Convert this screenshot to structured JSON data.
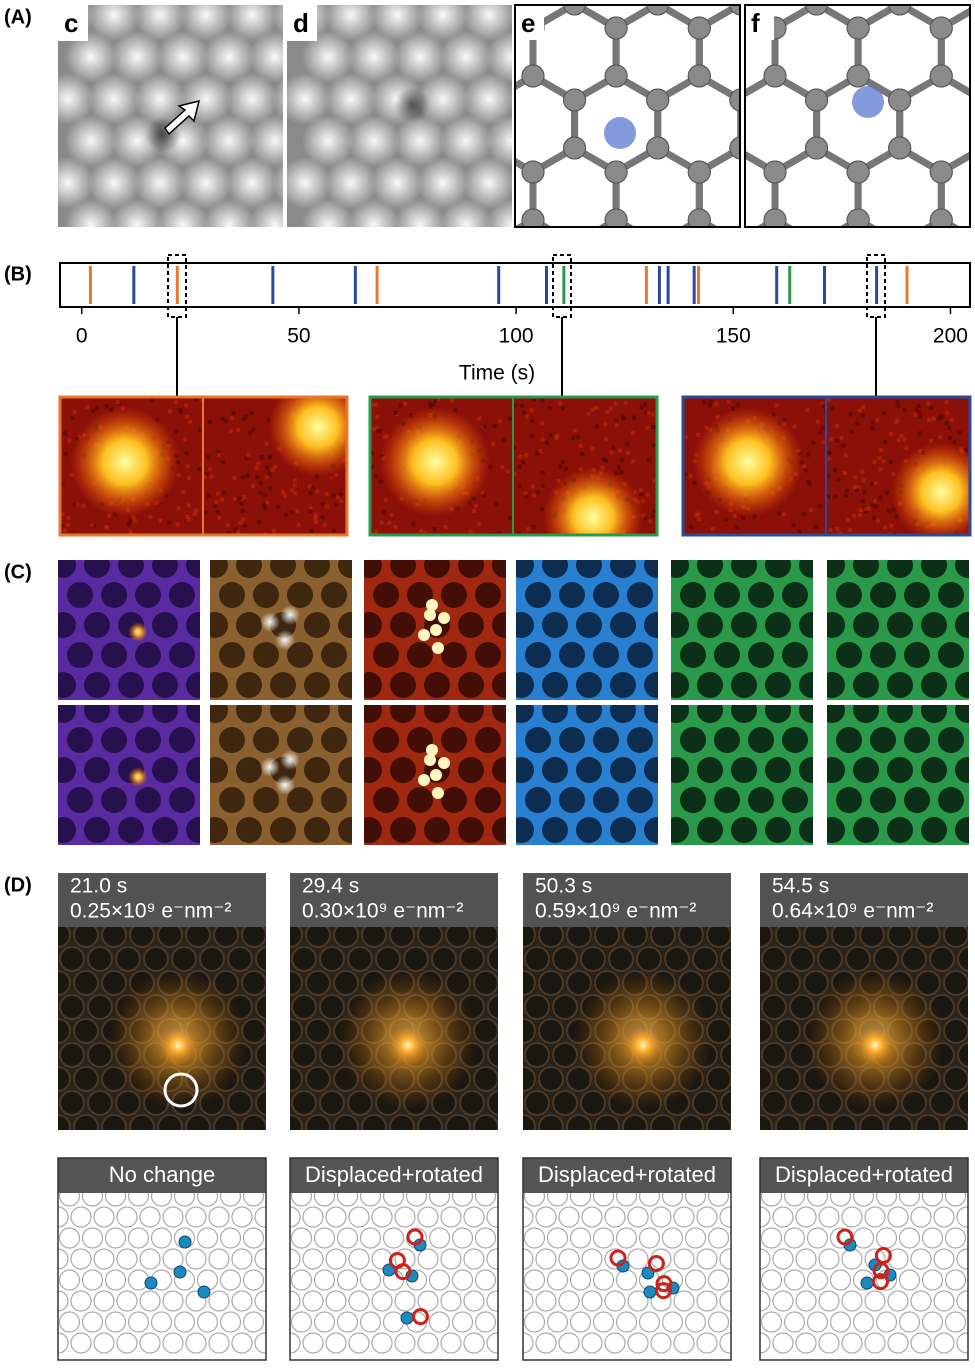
{
  "panel_labels": [
    "(A)",
    "(B)",
    "(C)",
    "(D)"
  ],
  "a_sublabels": [
    "c",
    "d",
    "e",
    "f"
  ],
  "chart_data": {
    "type": "event",
    "xlim": [
      -5,
      204.5
    ],
    "xticks": [
      0,
      50,
      100,
      150,
      200
    ],
    "xlabel": "Time (s)",
    "series": [
      {
        "color": "#e8772e",
        "values": [
          2,
          22,
          68,
          130,
          142,
          190
        ]
      },
      {
        "color": "#2a4a9c",
        "values": [
          12,
          44,
          63,
          96,
          107,
          133,
          135,
          141,
          160,
          171,
          183
        ]
      },
      {
        "color": "#2a9a4a",
        "values": [
          111,
          163
        ]
      }
    ]
  },
  "d_frames": [
    {
      "time": "21.0 s",
      "dose": "0.25×10⁹ e⁻nm⁻²",
      "status": "No change"
    },
    {
      "time": "29.4 s",
      "dose": "0.30×10⁹ e⁻nm⁻²",
      "status": "Displaced+rotated"
    },
    {
      "time": "50.3 s",
      "dose": "0.59×10⁹ e⁻nm⁻²",
      "status": "Displaced+rotated"
    },
    {
      "time": "54.5 s",
      "dose": "0.64×10⁹ e⁻nm⁻²",
      "status": "Displaced+rotated"
    }
  ]
}
